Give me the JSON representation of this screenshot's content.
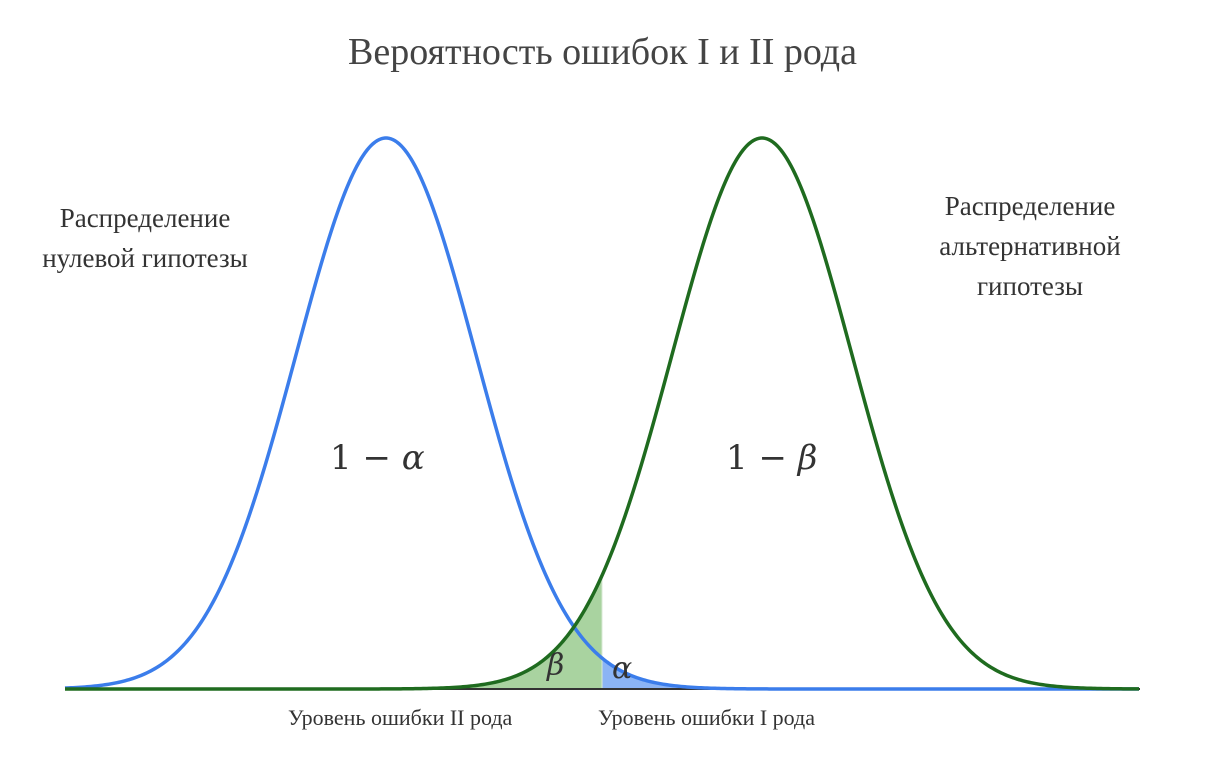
{
  "title": "Вероятность ошибок I и II рода",
  "null_distribution": {
    "label_line1": "Распределение",
    "label_line2": "нулевой гипотезы",
    "color": "#3b7deb"
  },
  "alt_distribution": {
    "label_line1": "Распределение",
    "label_line2": "альтернативной",
    "label_line3": "гипотезы",
    "color": "#1f6b1f"
  },
  "regions": {
    "one_minus": "1 −",
    "alpha": "α",
    "beta": "β"
  },
  "fills": {
    "beta_color": "#a9d3a0",
    "alpha_color": "#8bb4f5"
  },
  "axis_captions": {
    "type2": "Уровень ошибки II рода",
    "type1": "Уровень ошибки I рода"
  }
}
